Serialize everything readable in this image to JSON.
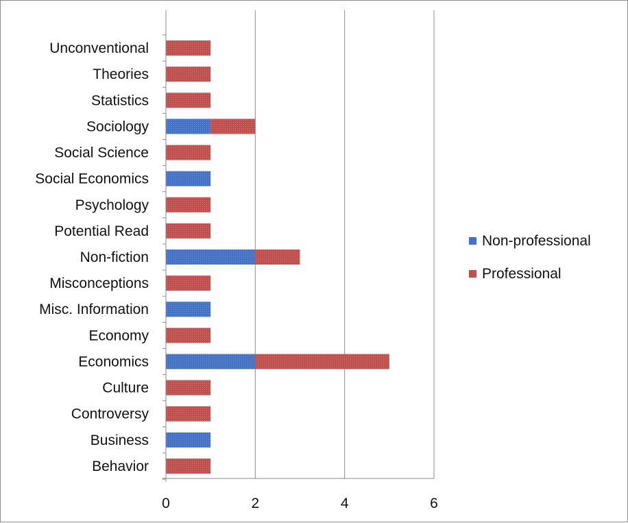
{
  "chart_data": {
    "type": "bar",
    "orientation": "horizontal",
    "stacked": true,
    "title": "",
    "xlabel": "",
    "ylabel": "",
    "categories": [
      "Behavior",
      "Business",
      "Controversy",
      "Culture",
      "Economics",
      "Economy",
      "Misc. Information",
      "Misconceptions",
      "Non-fiction",
      "Potential Read",
      "Psychology",
      "Social Economics",
      "Social Science",
      "Sociology",
      "Statistics",
      "Theories",
      "Unconventional"
    ],
    "series": [
      {
        "name": "Non-professional",
        "color": "#4472c4",
        "values": [
          0,
          1,
          0,
          0,
          2,
          0,
          1,
          0,
          2,
          0,
          0,
          1,
          0,
          1,
          0,
          0,
          0
        ]
      },
      {
        "name": "Professional",
        "color": "#c0504d",
        "values": [
          1,
          0,
          1,
          1,
          3,
          1,
          0,
          1,
          1,
          1,
          1,
          0,
          1,
          1,
          1,
          1,
          1
        ]
      }
    ],
    "xlim": [
      0,
      6
    ],
    "xticks": [
      0,
      2,
      4,
      6
    ],
    "grid": true,
    "legend_position": "right"
  }
}
